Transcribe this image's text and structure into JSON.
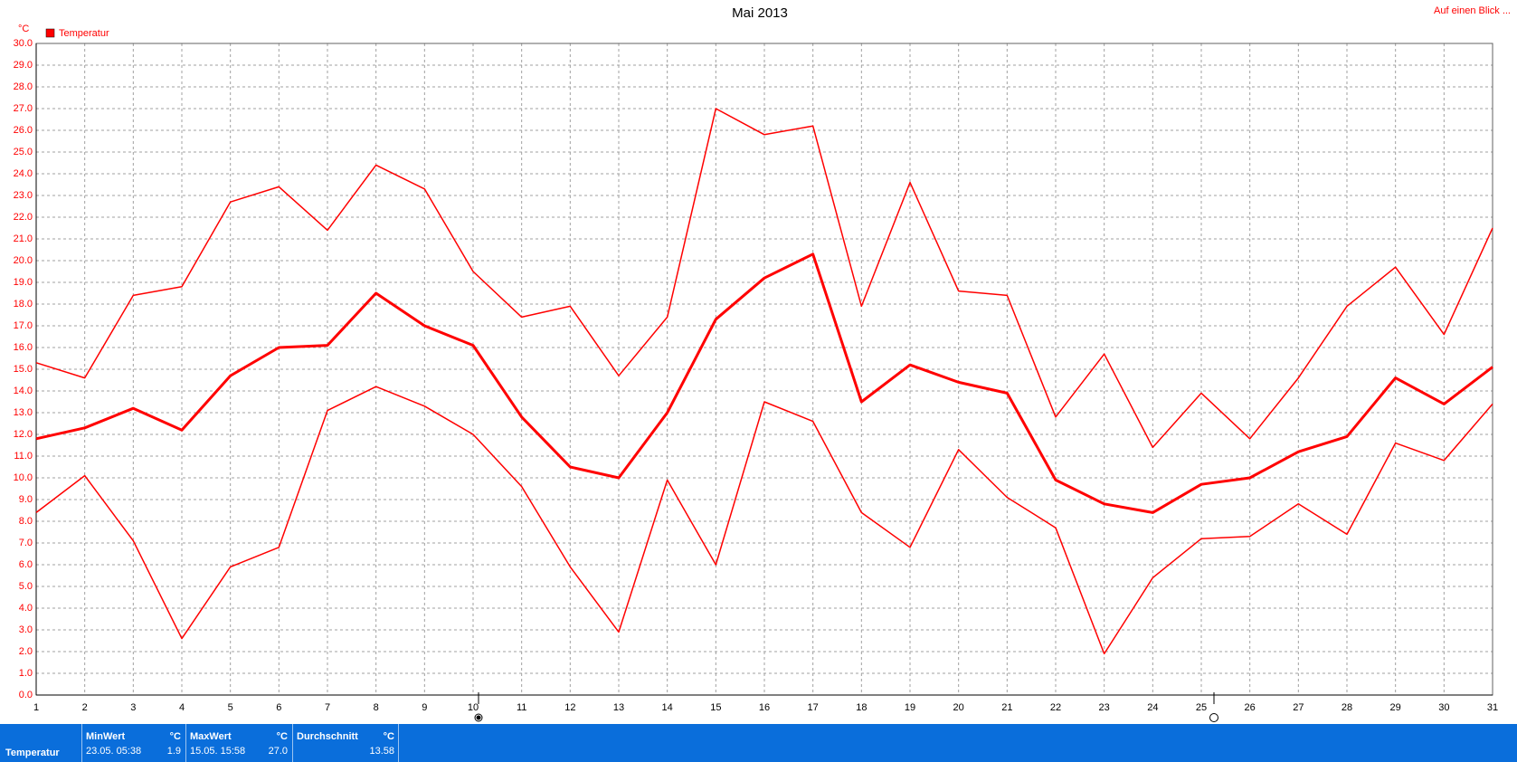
{
  "chart_data": {
    "type": "line",
    "title": "Mai 2013",
    "y_unit": "°C",
    "legend_label": "Temperatur",
    "link": "Auf einen Blick ...",
    "x": [
      1,
      2,
      3,
      4,
      5,
      6,
      7,
      8,
      9,
      10,
      11,
      12,
      13,
      14,
      15,
      16,
      17,
      18,
      19,
      20,
      21,
      22,
      23,
      24,
      25,
      26,
      27,
      28,
      29,
      30,
      31
    ],
    "xlim": [
      1,
      31
    ],
    "xticks": [
      1,
      2,
      3,
      4,
      5,
      6,
      7,
      8,
      9,
      10,
      11,
      12,
      13,
      14,
      15,
      16,
      17,
      18,
      19,
      20,
      21,
      22,
      23,
      24,
      25,
      26,
      27,
      28,
      29,
      30,
      31
    ],
    "ylim": [
      0,
      30
    ],
    "yticks": [
      {
        "value": 0,
        "label": "0.0"
      },
      {
        "value": 1,
        "label": "1.0"
      },
      {
        "value": 2,
        "label": "2.0"
      },
      {
        "value": 3,
        "label": "3.0"
      },
      {
        "value": 4,
        "label": "4.0"
      },
      {
        "value": 5,
        "label": "5.0"
      },
      {
        "value": 6,
        "label": "6.0"
      },
      {
        "value": 7,
        "label": "7.0"
      },
      {
        "value": 8,
        "label": "8.0"
      },
      {
        "value": 9,
        "label": "9.0"
      },
      {
        "value": 10,
        "label": "10.0"
      },
      {
        "value": 11,
        "label": "11.0"
      },
      {
        "value": 12,
        "label": "12.0"
      },
      {
        "value": 13,
        "label": "13.0"
      },
      {
        "value": 14,
        "label": "14.0"
      },
      {
        "value": 15,
        "label": "15.0"
      },
      {
        "value": 16,
        "label": "16.0"
      },
      {
        "value": 17,
        "label": "17.0"
      },
      {
        "value": 18,
        "label": "18.0"
      },
      {
        "value": 19,
        "label": "19.0"
      },
      {
        "value": 20,
        "label": "20.0"
      },
      {
        "value": 21,
        "label": "21.0"
      },
      {
        "value": 22,
        "label": "22.0"
      },
      {
        "value": 23,
        "label": "23.0"
      },
      {
        "value": 24,
        "label": "24.0"
      },
      {
        "value": 25,
        "label": "25.0"
      },
      {
        "value": 26,
        "label": "26.0"
      },
      {
        "value": 27,
        "label": "27.0"
      },
      {
        "value": 28,
        "label": "28.0"
      },
      {
        "value": 29,
        "label": "29.0"
      },
      {
        "value": 30,
        "label": "30.0"
      }
    ],
    "grid": true,
    "series": [
      {
        "color": "#ff0000",
        "linewidth": 1.5,
        "values": [
          15.3,
          14.6,
          18.4,
          18.8,
          22.7,
          23.4,
          21.4,
          24.4,
          23.3,
          19.5,
          17.4,
          17.9,
          14.7,
          17.4,
          27.0,
          25.8,
          26.2,
          17.9,
          23.6,
          18.6,
          18.4,
          12.8,
          15.7,
          11.4,
          13.9,
          11.8,
          14.6,
          17.9,
          19.7,
          16.6,
          21.5
        ]
      },
      {
        "color": "#ff0000",
        "linewidth": 3,
        "values": [
          11.8,
          12.3,
          13.2,
          12.2,
          14.7,
          16.0,
          16.1,
          18.5,
          17.0,
          16.1,
          12.8,
          10.5,
          10.0,
          13.0,
          17.3,
          19.2,
          20.3,
          13.5,
          15.2,
          14.4,
          13.9,
          9.9,
          8.8,
          8.4,
          9.7,
          10.0,
          11.2,
          11.9,
          14.6,
          13.4,
          15.1
        ]
      },
      {
        "color": "#ff0000",
        "linewidth": 1.5,
        "values": [
          8.4,
          10.1,
          7.1,
          2.6,
          5.9,
          6.8,
          13.1,
          14.2,
          13.3,
          12.0,
          9.6,
          5.9,
          2.9,
          9.9,
          6.0,
          13.5,
          12.6,
          8.4,
          6.8,
          11.3,
          9.1,
          7.7,
          1.9,
          5.4,
          7.2,
          7.3,
          8.8,
          7.4,
          11.6,
          10.8,
          13.4
        ]
      }
    ]
  },
  "summary": {
    "label": "Temperatur",
    "min": {
      "title": "MinWert",
      "unit": "°C",
      "time": "23.05.  05:38",
      "value": "1.9"
    },
    "max": {
      "title": "MaxWert",
      "unit": "°C",
      "time": "15.05.  15:58",
      "value": "27.0"
    },
    "avg": {
      "title": "Durchschnitt",
      "unit": "°C",
      "value": "13.58"
    }
  }
}
